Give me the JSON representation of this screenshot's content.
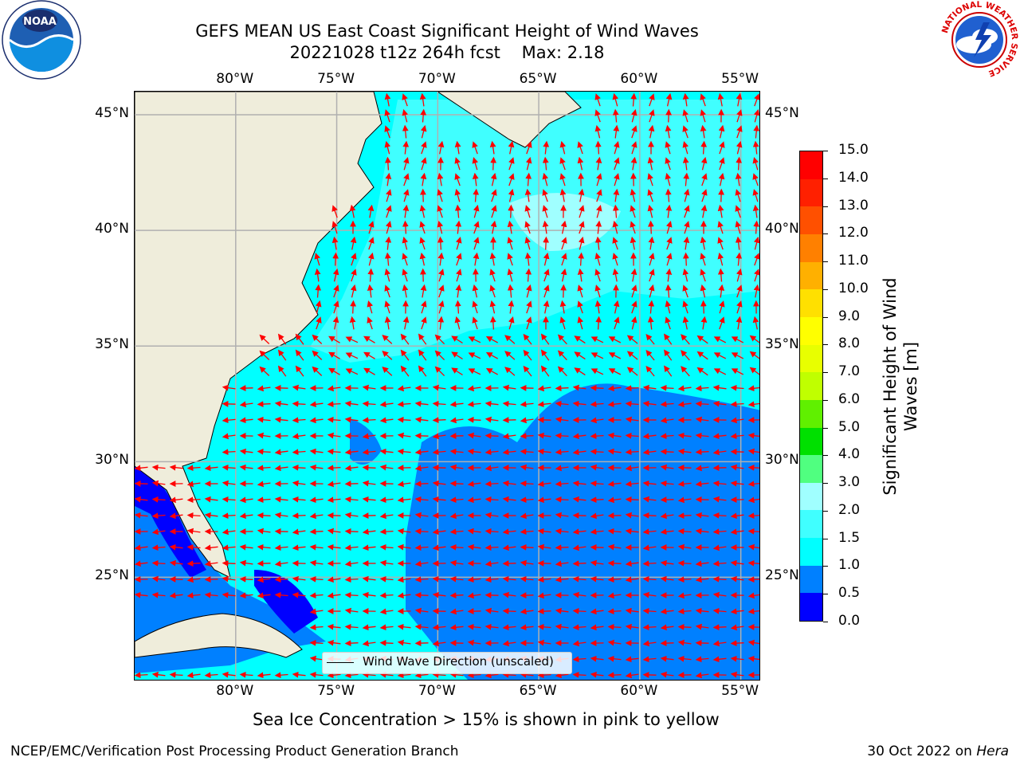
{
  "title": {
    "line1": "GEFS MEAN US East Coast Significant Height of Wind Waves",
    "line2": "20221028 t12z 264h fcst    Max: 2.18"
  },
  "logos": {
    "noaa": "NOAA",
    "nws_ring": "NATIONAL WEATHER SERVICE"
  },
  "map": {
    "lon_ticks": [
      "80°W",
      "75°W",
      "70°W",
      "65°W",
      "60°W",
      "55°W"
    ],
    "lat_ticks": [
      "45°N",
      "40°N",
      "35°N",
      "30°N",
      "25°N"
    ],
    "lon_range": [
      -85,
      -54
    ],
    "lat_range": [
      20.5,
      46
    ],
    "legend": "Wind Wave Direction (unscaled)",
    "arrow_color": "#ff0000",
    "land_color": "#efeddb",
    "grid": true
  },
  "colorbar": {
    "label_line1": "Significant Height of Wind",
    "label_line2": "Waves [m]",
    "ticks": [
      "0.0",
      "0.5",
      "1.0",
      "1.5",
      "2.0",
      "3.0",
      "4.0",
      "5.0",
      "6.0",
      "7.0",
      "8.0",
      "9.0",
      "10.0",
      "11.0",
      "12.0",
      "13.0",
      "14.0",
      "15.0"
    ],
    "colors": [
      "#0000ff",
      "#0080ff",
      "#00ffff",
      "#40ffff",
      "#a0ffff",
      "#50ff80",
      "#00e000",
      "#60f000",
      "#c0ff00",
      "#e8ff00",
      "#ffff00",
      "#ffe000",
      "#ffb000",
      "#ff8000",
      "#ff5000",
      "#ff2000",
      "#ff0000"
    ]
  },
  "caption": "Sea Ice Concentration > 15% is shown in pink to yellow",
  "footer": {
    "left": "NCEP/EMC/Verification Post Processing Product Generation Branch",
    "right_date": "30 Oct 2022 on ",
    "right_host": "Hera"
  }
}
